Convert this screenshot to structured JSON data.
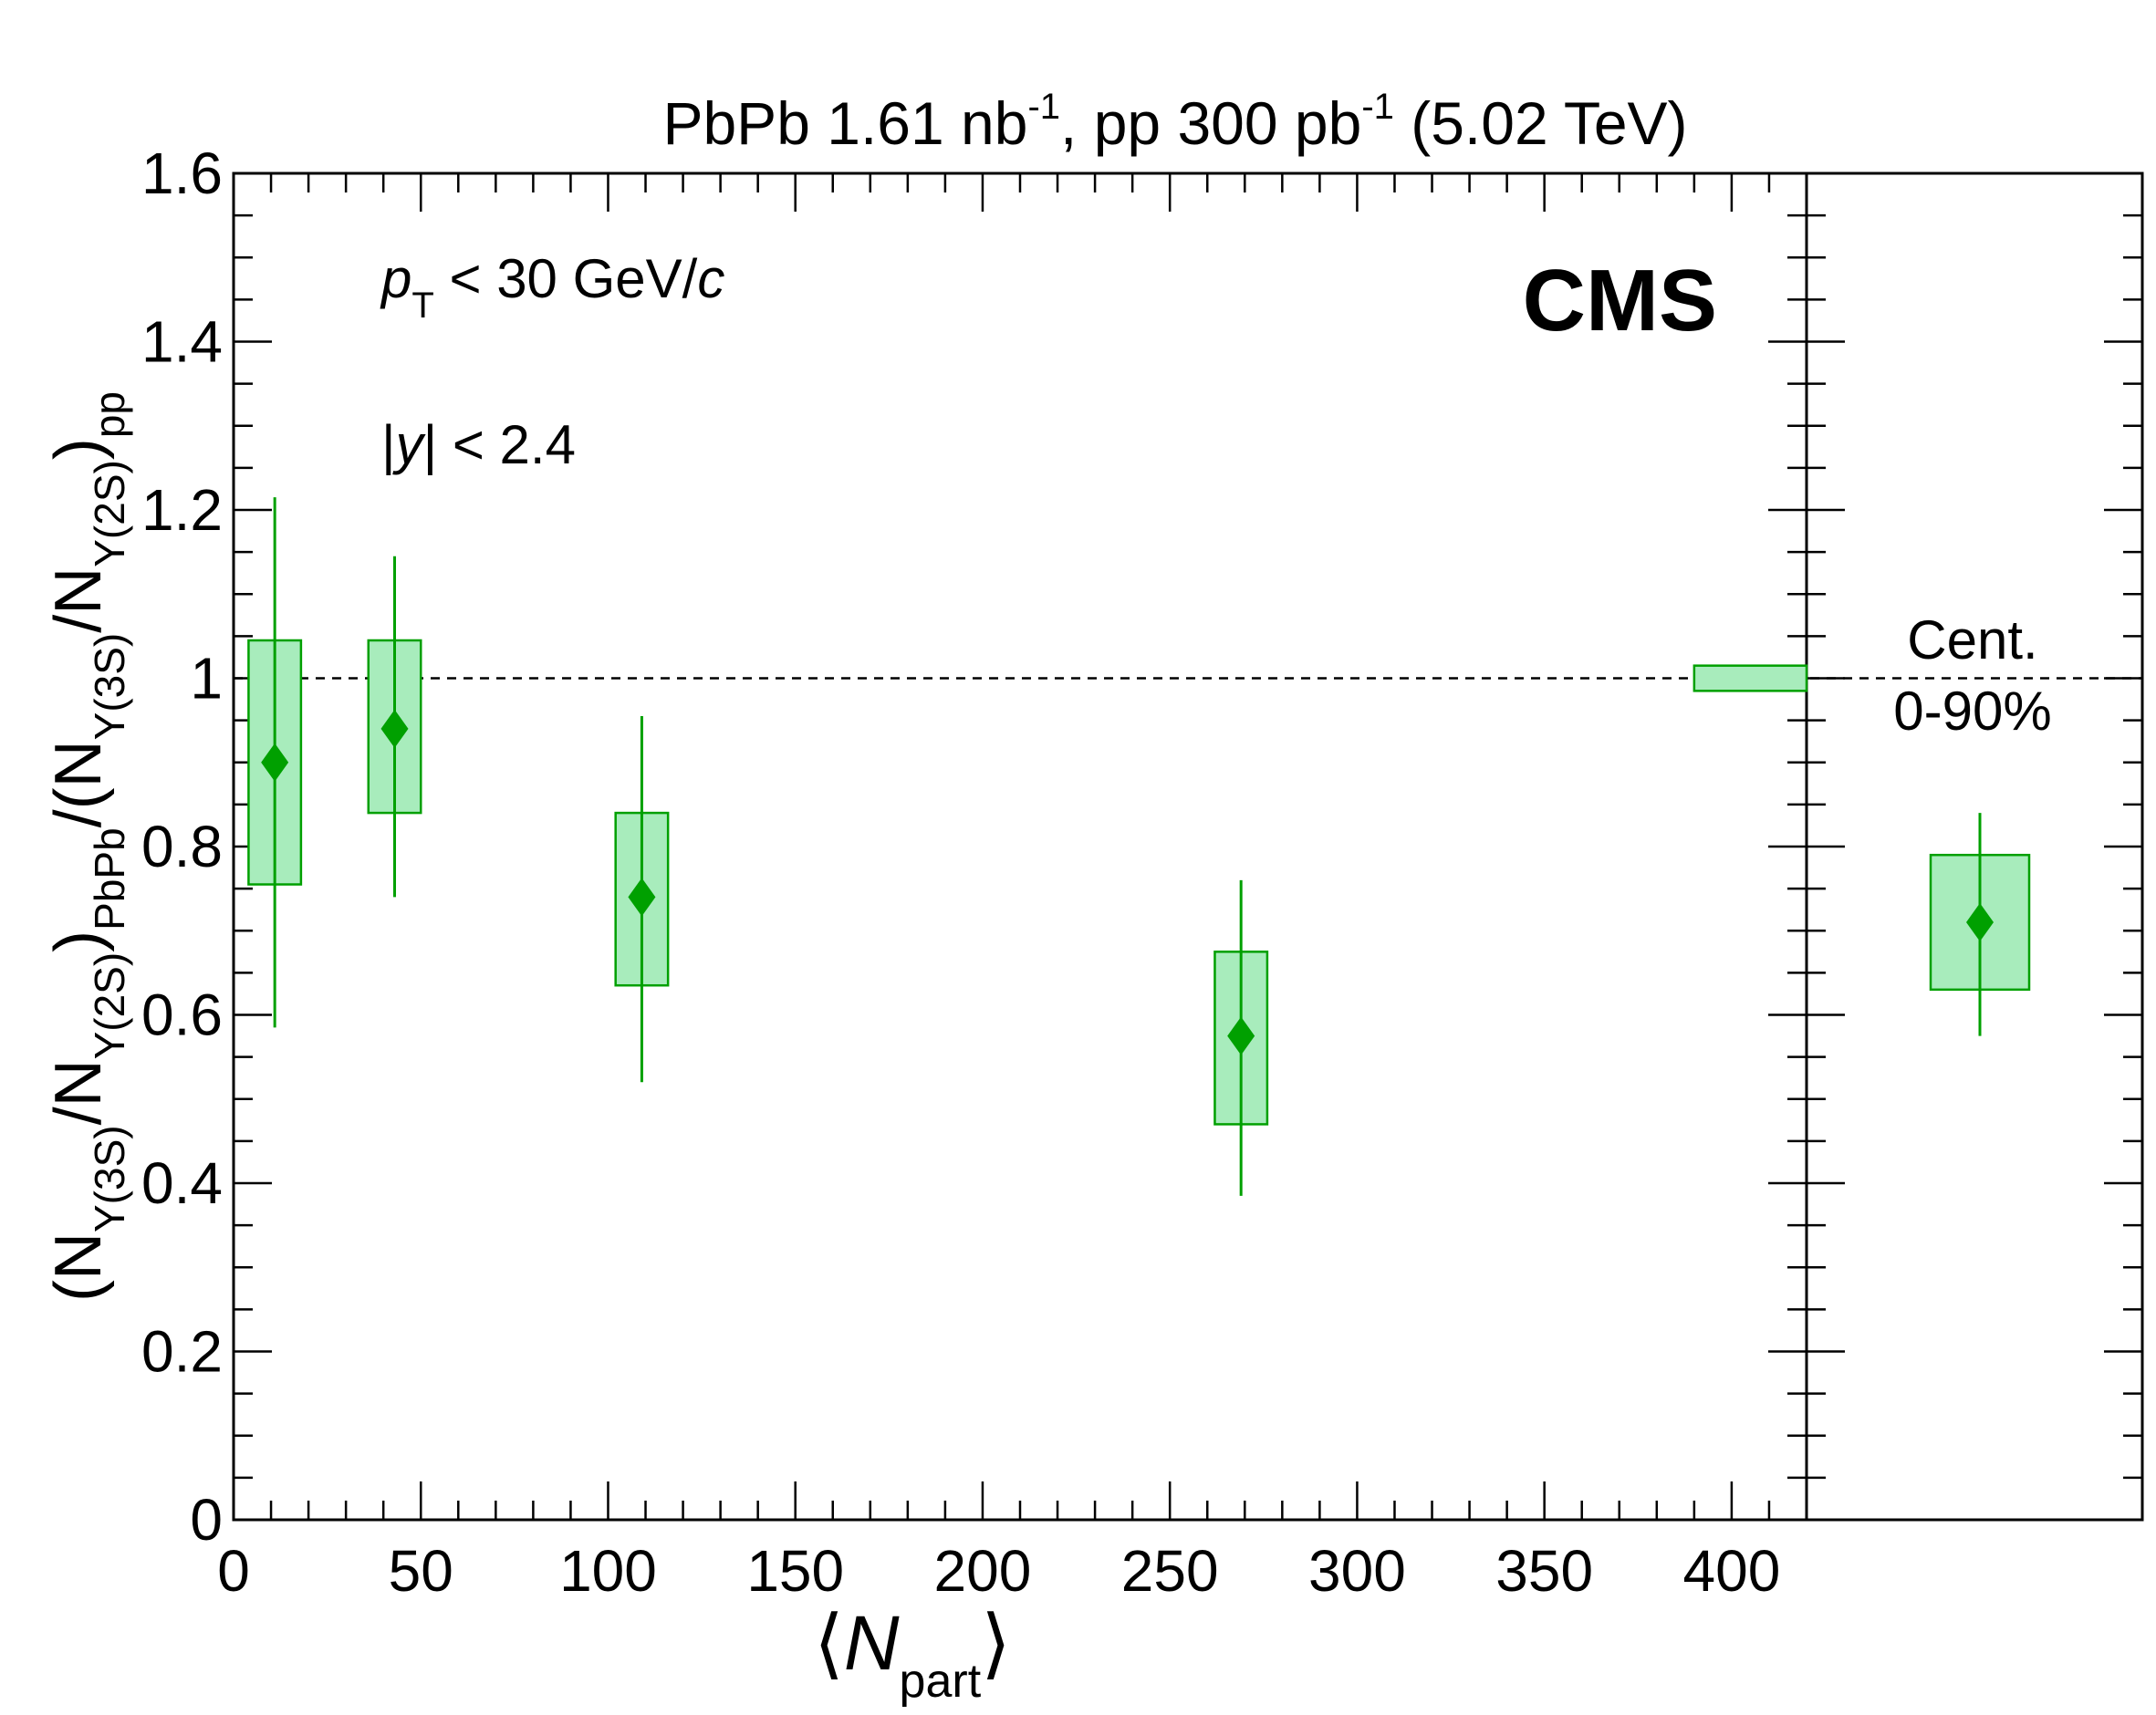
{
  "colors": {
    "marker": "#00a000",
    "box_fill": "#a8ecbc",
    "box_stroke": "#00a000",
    "axis": "#000000",
    "reference_line": "#000000"
  },
  "title": {
    "part1": "PbPb 1.61 nb",
    "sup1": "-1",
    "part2": ", pp 300 pb",
    "sup2": "-1",
    "part3": " (5.02 TeV)"
  },
  "experiment_label": "CMS",
  "cuts": {
    "pt_symbol": "p",
    "pt_subscript": "T",
    "pt_text": " < 30 GeV/",
    "pt_unit_c": "c",
    "y_prefix": "|",
    "y_symbol": "y",
    "y_text": "| < 2.4"
  },
  "integrated_panel": {
    "label_line1": "Cent.",
    "label_line2": "0-90%"
  },
  "x_axis": {
    "label_prefix": "⟨",
    "label_symbol": "N",
    "label_subscript": "part",
    "label_suffix": "⟩"
  },
  "y_axis": {
    "label": "(N_Υ(3S)/N_Υ(2S))_PbPb / (N_Υ(3S)/N_Υ(2S))_pp",
    "seg_open": "(N",
    "sub_3s": "Υ(3S)",
    "seg_slash": "/N",
    "sub_2s": "Υ(2S)",
    "seg_close": ")",
    "sub_pbpb": "PbPb",
    "seg_div": "/(N",
    "sub_3s_b": "Υ(3S)",
    "seg_slash_b": "/N",
    "sub_2s_b": "Υ(2S)",
    "seg_close_b": ")",
    "sub_pp": "pp"
  },
  "chart_data": {
    "type": "scatter",
    "title": "PbPb 1.61 nb-1, pp 300 pb-1 (5.02 TeV)",
    "xlabel": "⟨Npart⟩",
    "ylabel": "(N_Υ(3S)/N_Υ(2S))_PbPb / (N_Υ(3S)/N_Υ(2S))_pp",
    "xlim": [
      0,
      420
    ],
    "ylim": [
      0,
      1.6
    ],
    "x_ticks": [
      "0",
      "50",
      "100",
      "150",
      "200",
      "250",
      "300",
      "350",
      "400"
    ],
    "y_ticks": [
      "0",
      "0.2",
      "0.4",
      "0.6",
      "0.8",
      "1",
      "1.2",
      "1.4",
      "1.6"
    ],
    "grid": false,
    "reference_line_y": 1.0,
    "series": [
      {
        "points": [
          {
            "x": 11,
            "y": 0.9,
            "stat_lo": 0.585,
            "stat_hi": 1.215,
            "syst_lo": 0.755,
            "syst_hi": 1.045,
            "box_x_lo": 4,
            "box_x_hi": 18
          },
          {
            "x": 43,
            "y": 0.94,
            "stat_lo": 0.74,
            "stat_hi": 1.145,
            "syst_lo": 0.84,
            "syst_hi": 1.045,
            "box_x_lo": 36,
            "box_x_hi": 50
          },
          {
            "x": 109,
            "y": 0.74,
            "stat_lo": 0.52,
            "stat_hi": 0.955,
            "syst_lo": 0.635,
            "syst_hi": 0.84,
            "box_x_lo": 102,
            "box_x_hi": 116
          },
          {
            "x": 269,
            "y": 0.575,
            "stat_lo": 0.385,
            "stat_hi": 0.76,
            "syst_lo": 0.47,
            "syst_hi": 0.675,
            "box_x_lo": 262,
            "box_x_hi": 276
          }
        ]
      }
    ],
    "global_uncertainty_box": {
      "x_lo": 390,
      "x_hi": 420,
      "y_lo": 0.985,
      "y_hi": 1.015
    },
    "integrated": {
      "label": "Cent. 0-90%",
      "y": 0.71,
      "stat_lo": 0.575,
      "stat_hi": 0.84,
      "syst_lo": 0.63,
      "syst_hi": 0.79
    }
  }
}
